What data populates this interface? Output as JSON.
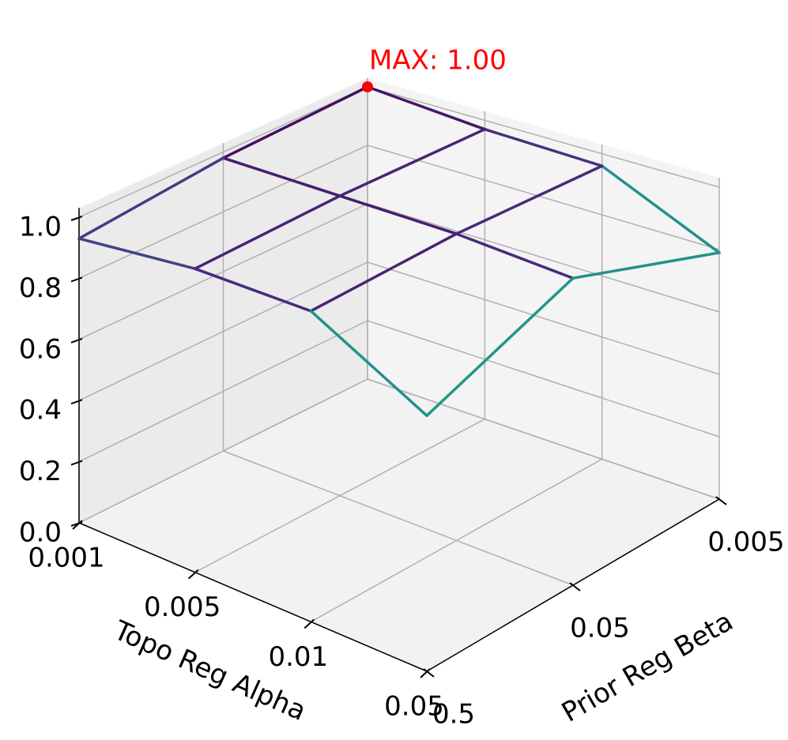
{
  "chart_data": {
    "type": "wireframe3d",
    "x_label": "Topo Reg Alpha",
    "y_label": "Prior Reg Beta",
    "x_categories": [
      "0.001",
      "0.005",
      "0.01",
      "0.05"
    ],
    "y_categories": [
      "0.005",
      "0.05",
      "0.5"
    ],
    "values": [
      [
        1.0,
        0.98,
        0.93
      ],
      [
        0.97,
        0.98,
        0.97
      ],
      [
        0.96,
        0.98,
        0.97
      ],
      [
        0.79,
        0.96,
        0.78
      ]
    ],
    "zlim": [
      0,
      1
    ],
    "zticks": [
      {
        "value": 0,
        "label": "0.0"
      },
      0.2,
      0.4,
      0.6,
      0.8,
      {
        "value": 1,
        "label": "1.0"
      }
    ],
    "colormap": "viridis_r",
    "grid": true,
    "annotation": {
      "text": "MAX: 1.00",
      "color": "#ff0000",
      "point": [
        0,
        0
      ]
    }
  }
}
